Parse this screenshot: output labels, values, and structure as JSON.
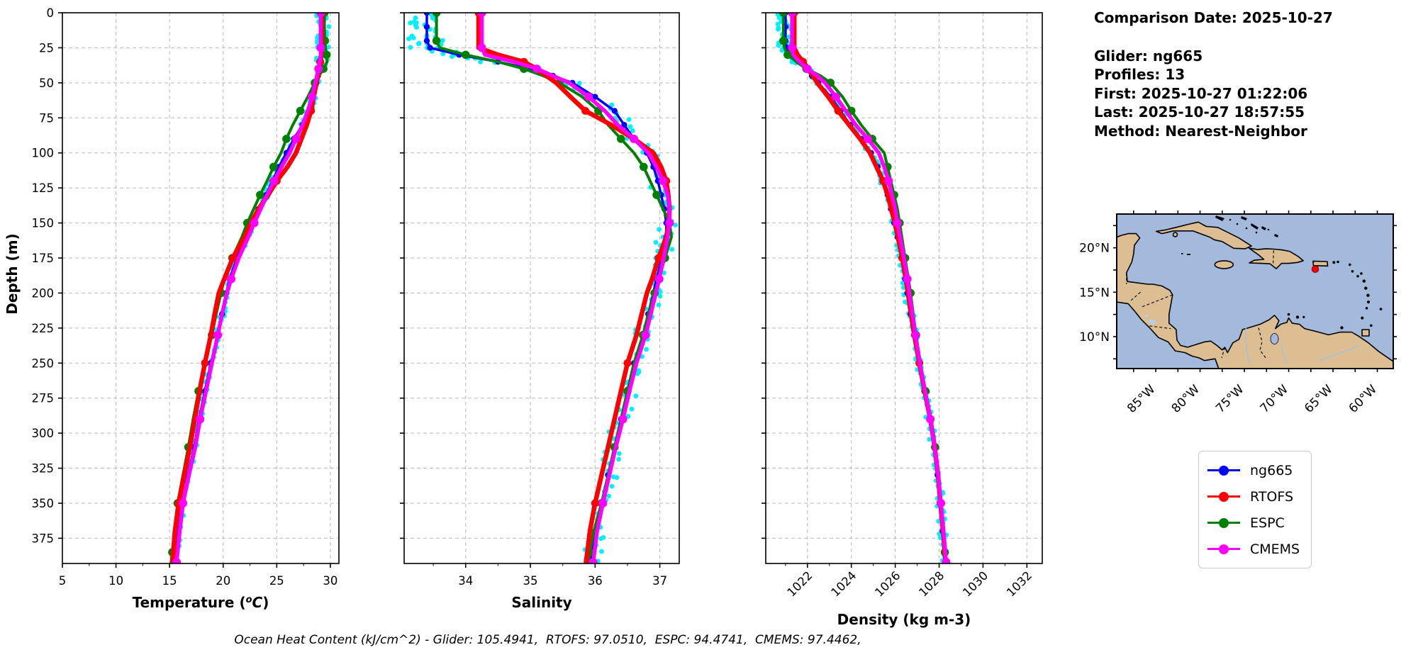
{
  "info": {
    "date": "Comparison Date: 2025-10-27",
    "glider": "Glider: ng665",
    "profiles": "Profiles: 13",
    "first": "First: 2025-10-27 01:22:06",
    "last": "Last: 2025-10-27 18:57:55",
    "method": "Method: Nearest-Neighbor"
  },
  "caption": "Ocean Heat Content (kJ/cm^2) - Glider: 105.4941,  RTOFS: 97.0510,  ESPC: 94.4741,  CMEMS: 97.4462,",
  "legend": {
    "items": [
      {
        "label": "ng665",
        "color": "#0000ff"
      },
      {
        "label": "RTOFS",
        "color": "#ff0000"
      },
      {
        "label": "ESPC",
        "color": "#008000"
      },
      {
        "label": "CMEMS",
        "color": "#ff00ff"
      }
    ]
  },
  "map": {
    "ocean_color": "#a3badd",
    "land_color": "#ddbd92",
    "marker_color": "#ff0000",
    "lat_labels": [
      "20°N",
      "15°N",
      "10°N"
    ],
    "lon_labels": [
      "85°W",
      "80°W",
      "75°W",
      "70°W",
      "65°W",
      "60°W"
    ]
  },
  "chart_data": {
    "type": "line",
    "ylabel": "Depth (m)",
    "ylim": [
      0,
      393
    ],
    "yticks": [
      0,
      25,
      50,
      75,
      100,
      125,
      150,
      175,
      200,
      225,
      250,
      275,
      300,
      325,
      350,
      375
    ],
    "grid": true,
    "panels": [
      {
        "id": "temperature",
        "xlabel": "Temperature (°C)",
        "xlim": [
          5,
          30.8
        ],
        "xticks": [
          5,
          10,
          15,
          20,
          25,
          30
        ],
        "minor_ticks": [
          7.5,
          12.5,
          17.5,
          22.5,
          27.5
        ],
        "tick_rotation": 0
      },
      {
        "id": "salinity",
        "xlabel": "Salinity",
        "xlim": [
          33.05,
          37.3
        ],
        "xticks": [
          34,
          35,
          36,
          37
        ],
        "minor_ticks": [
          33.5,
          34.5,
          35.5,
          36.5
        ],
        "tick_rotation": 0
      },
      {
        "id": "density",
        "xlabel": "Density (kg m-3)",
        "xlim": [
          1020.1,
          1032.7
        ],
        "xticks": [
          1022,
          1024,
          1026,
          1028,
          1030,
          1032
        ],
        "minor_ticks": [
          1021,
          1023,
          1025,
          1027,
          1029,
          1031
        ],
        "tick_rotation": 45
      }
    ],
    "depths": [
      0,
      10,
      20,
      25,
      30,
      35,
      40,
      45,
      50,
      60,
      70,
      80,
      90,
      100,
      110,
      120,
      130,
      140,
      150,
      160,
      175,
      190,
      200,
      215,
      230,
      250,
      270,
      290,
      310,
      330,
      350,
      370,
      385,
      392
    ],
    "series": [
      {
        "name": "ng665",
        "color": "#0000ff",
        "line_width": 3.5,
        "marker_every": 1,
        "marker_r": 4.2,
        "temperature": [
          29.3,
          29.3,
          29.3,
          29.3,
          29.25,
          29.15,
          29.0,
          28.85,
          28.7,
          28.4,
          28.0,
          27.4,
          26.6,
          25.9,
          25.2,
          24.6,
          24.0,
          23.3,
          22.7,
          22.2,
          21.3,
          20.6,
          20.3,
          19.9,
          19.5,
          18.85,
          18.3,
          17.75,
          17.3,
          16.7,
          16.2,
          15.8,
          15.55,
          15.45
        ],
        "salinity": [
          33.4,
          33.4,
          33.4,
          33.45,
          33.9,
          34.5,
          35.0,
          35.35,
          35.65,
          36.0,
          36.3,
          36.45,
          36.6,
          36.8,
          36.9,
          36.97,
          37.02,
          37.07,
          37.1,
          37.1,
          37.03,
          36.95,
          36.9,
          36.82,
          36.74,
          36.6,
          36.5,
          36.4,
          36.3,
          36.2,
          36.1,
          36.0,
          35.95,
          35.93
        ],
        "density": [
          1021.0,
          1021.0,
          1021.0,
          1021.05,
          1021.25,
          1021.6,
          1021.95,
          1022.2,
          1022.5,
          1023.05,
          1023.5,
          1023.95,
          1024.45,
          1024.9,
          1025.2,
          1025.45,
          1025.65,
          1025.8,
          1025.95,
          1026.1,
          1026.3,
          1026.45,
          1026.55,
          1026.7,
          1026.85,
          1027.08,
          1027.32,
          1027.58,
          1027.78,
          1027.93,
          1028.05,
          1028.16,
          1028.24,
          1028.28
        ]
      },
      {
        "name": "RTOFS",
        "color": "#ff0000",
        "line_width": 6.5,
        "marker_every": 5,
        "marker_r": 5.5,
        "temperature": [
          29.2,
          29.2,
          29.2,
          29.2,
          29.15,
          29.05,
          28.95,
          28.85,
          28.7,
          28.45,
          28.2,
          27.8,
          27.3,
          26.8,
          26.0,
          25.0,
          24.2,
          23.3,
          22.6,
          22.0,
          20.9,
          20.1,
          19.6,
          19.2,
          18.85,
          18.3,
          17.8,
          17.35,
          16.9,
          16.35,
          15.85,
          15.5,
          15.35,
          15.3
        ],
        "salinity": [
          34.2,
          34.2,
          34.2,
          34.2,
          34.5,
          34.9,
          35.1,
          35.25,
          35.4,
          35.62,
          35.85,
          36.25,
          36.6,
          36.9,
          37.02,
          37.1,
          37.13,
          37.15,
          37.14,
          37.1,
          36.98,
          36.88,
          36.8,
          36.72,
          36.64,
          36.5,
          36.4,
          36.3,
          36.2,
          36.1,
          36.0,
          35.92,
          35.88,
          35.86
        ],
        "density": [
          1021.4,
          1021.4,
          1021.4,
          1021.4,
          1021.55,
          1021.8,
          1022.05,
          1022.25,
          1022.45,
          1022.95,
          1023.4,
          1023.9,
          1024.4,
          1024.85,
          1025.15,
          1025.45,
          1025.65,
          1025.82,
          1025.98,
          1026.12,
          1026.32,
          1026.48,
          1026.58,
          1026.72,
          1026.87,
          1027.1,
          1027.34,
          1027.6,
          1027.8,
          1027.95,
          1028.06,
          1028.18,
          1028.26,
          1028.3
        ]
      },
      {
        "name": "ESPC",
        "color": "#008000",
        "line_width": 4,
        "marker_every": 2,
        "marker_r": 5.8,
        "temperature": [
          29.45,
          29.45,
          29.5,
          29.55,
          29.65,
          29.7,
          29.35,
          28.95,
          28.55,
          27.9,
          27.2,
          26.5,
          25.9,
          25.4,
          24.7,
          24.1,
          23.45,
          22.85,
          22.25,
          21.75,
          20.85,
          20.1,
          19.8,
          19.35,
          18.95,
          18.25,
          17.7,
          17.2,
          16.75,
          16.25,
          15.75,
          15.45,
          15.25,
          15.15
        ],
        "salinity": [
          33.55,
          33.55,
          33.55,
          33.6,
          34.0,
          34.5,
          34.9,
          35.2,
          35.45,
          35.8,
          36.05,
          36.2,
          36.4,
          36.6,
          36.75,
          36.85,
          36.95,
          37.05,
          37.15,
          37.18,
          37.08,
          36.98,
          36.92,
          36.82,
          36.74,
          36.6,
          36.5,
          36.4,
          36.3,
          36.2,
          36.1,
          35.98,
          35.92,
          35.9
        ],
        "density": [
          1020.9,
          1020.9,
          1020.9,
          1020.95,
          1021.1,
          1021.5,
          1021.95,
          1022.6,
          1023.05,
          1023.6,
          1024.0,
          1024.45,
          1024.95,
          1025.5,
          1025.65,
          1025.8,
          1025.95,
          1026.1,
          1026.2,
          1026.3,
          1026.45,
          1026.6,
          1026.7,
          1026.82,
          1026.95,
          1027.15,
          1027.38,
          1027.62,
          1027.82,
          1027.96,
          1028.08,
          1028.18,
          1028.26,
          1028.3
        ]
      },
      {
        "name": "CMEMS",
        "color": "#ff00ff",
        "line_width": 5.5,
        "marker_every": 3,
        "marker_r": 6,
        "temperature": [
          29.1,
          29.1,
          29.1,
          29.1,
          29.1,
          29.0,
          28.9,
          28.75,
          28.6,
          28.3,
          27.9,
          27.4,
          26.8,
          26.2,
          25.45,
          24.75,
          24.1,
          23.5,
          22.9,
          22.35,
          21.45,
          20.75,
          20.35,
          19.9,
          19.5,
          18.95,
          18.4,
          17.85,
          17.4,
          16.8,
          16.25,
          15.95,
          15.75,
          15.65
        ],
        "salinity": [
          34.25,
          34.25,
          34.25,
          34.25,
          34.3,
          34.75,
          35.1,
          35.35,
          35.6,
          35.9,
          36.15,
          36.35,
          36.6,
          36.82,
          36.95,
          37.05,
          37.12,
          37.15,
          37.15,
          37.12,
          37.06,
          36.99,
          36.94,
          36.86,
          36.78,
          36.64,
          36.53,
          36.43,
          36.32,
          36.22,
          36.12,
          36.03,
          35.99,
          35.97
        ],
        "density": [
          1021.3,
          1021.3,
          1021.3,
          1021.3,
          1021.35,
          1021.65,
          1022.0,
          1022.45,
          1022.8,
          1023.3,
          1023.75,
          1024.2,
          1024.75,
          1025.25,
          1025.5,
          1025.7,
          1025.85,
          1026.0,
          1026.1,
          1026.22,
          1026.4,
          1026.55,
          1026.65,
          1026.78,
          1026.92,
          1027.12,
          1027.36,
          1027.6,
          1027.8,
          1027.96,
          1028.08,
          1028.2,
          1028.28,
          1028.32
        ]
      }
    ],
    "scatter": {
      "name": "glider-raw-points",
      "color": "#00f0ff",
      "point_r": 3.4,
      "jitter": {
        "temperature": 0.28,
        "salinity": 0.15,
        "density": 0.17
      }
    }
  }
}
